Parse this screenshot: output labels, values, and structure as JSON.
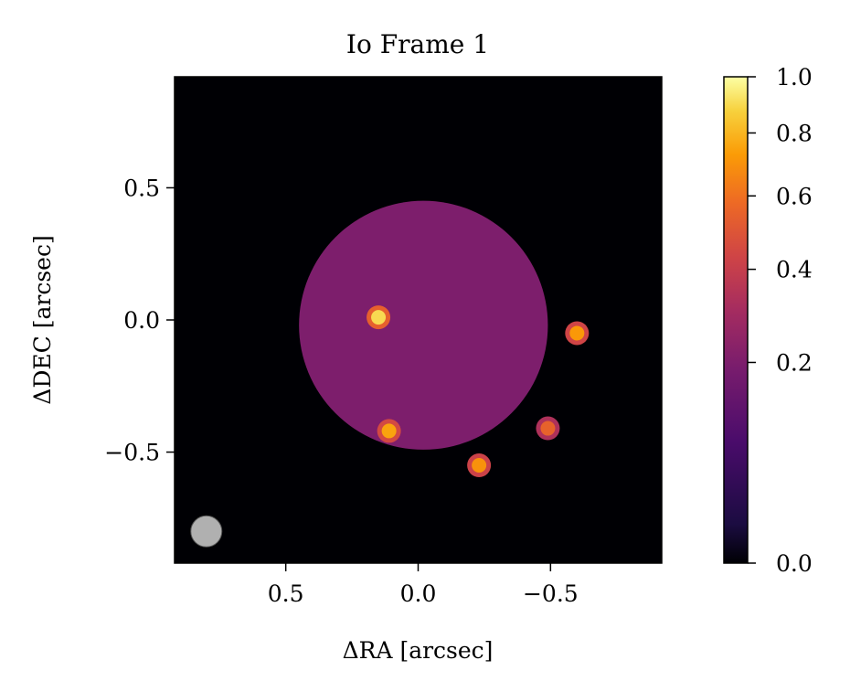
{
  "chart_data": {
    "type": "heatmap",
    "title": "Io Frame 1",
    "xlabel": "ΔRA [arcsec]",
    "ylabel": "ΔDEC [arcsec]",
    "x_range": [
      0.92,
      -0.92
    ],
    "y_range": [
      -0.92,
      0.92
    ],
    "x_ticks": [
      0.5,
      0.0,
      -0.5
    ],
    "x_tick_labels": [
      "0.5",
      "0.0",
      "−0.5"
    ],
    "y_ticks": [
      0.5,
      0.0,
      -0.5
    ],
    "y_tick_labels": [
      "0.5",
      "0.0",
      "−0.5"
    ],
    "grid": false,
    "colormap": "inferno",
    "colorbar": {
      "range": [
        0.0,
        1.0
      ],
      "scale": "power-stretched",
      "ticks": [
        0.0,
        0.2,
        0.4,
        0.6,
        0.8,
        1.0
      ],
      "tick_labels": [
        "0.0",
        "0.2",
        "0.4",
        "0.6",
        "0.8",
        "1.0"
      ]
    },
    "disk": {
      "center": [
        -0.02,
        -0.02
      ],
      "radius": 0.47,
      "brightness": 0.2
    },
    "hotspots": [
      {
        "x": 0.15,
        "y": 0.01,
        "peak": 0.9
      },
      {
        "x": 0.11,
        "y": -0.42,
        "peak": 0.75
      },
      {
        "x": -0.23,
        "y": -0.55,
        "peak": 0.7
      },
      {
        "x": -0.6,
        "y": -0.05,
        "peak": 0.72
      },
      {
        "x": -0.49,
        "y": -0.41,
        "peak": 0.55
      }
    ],
    "beam": {
      "x": 0.8,
      "y": -0.8,
      "color": "#b0b0b0"
    }
  }
}
